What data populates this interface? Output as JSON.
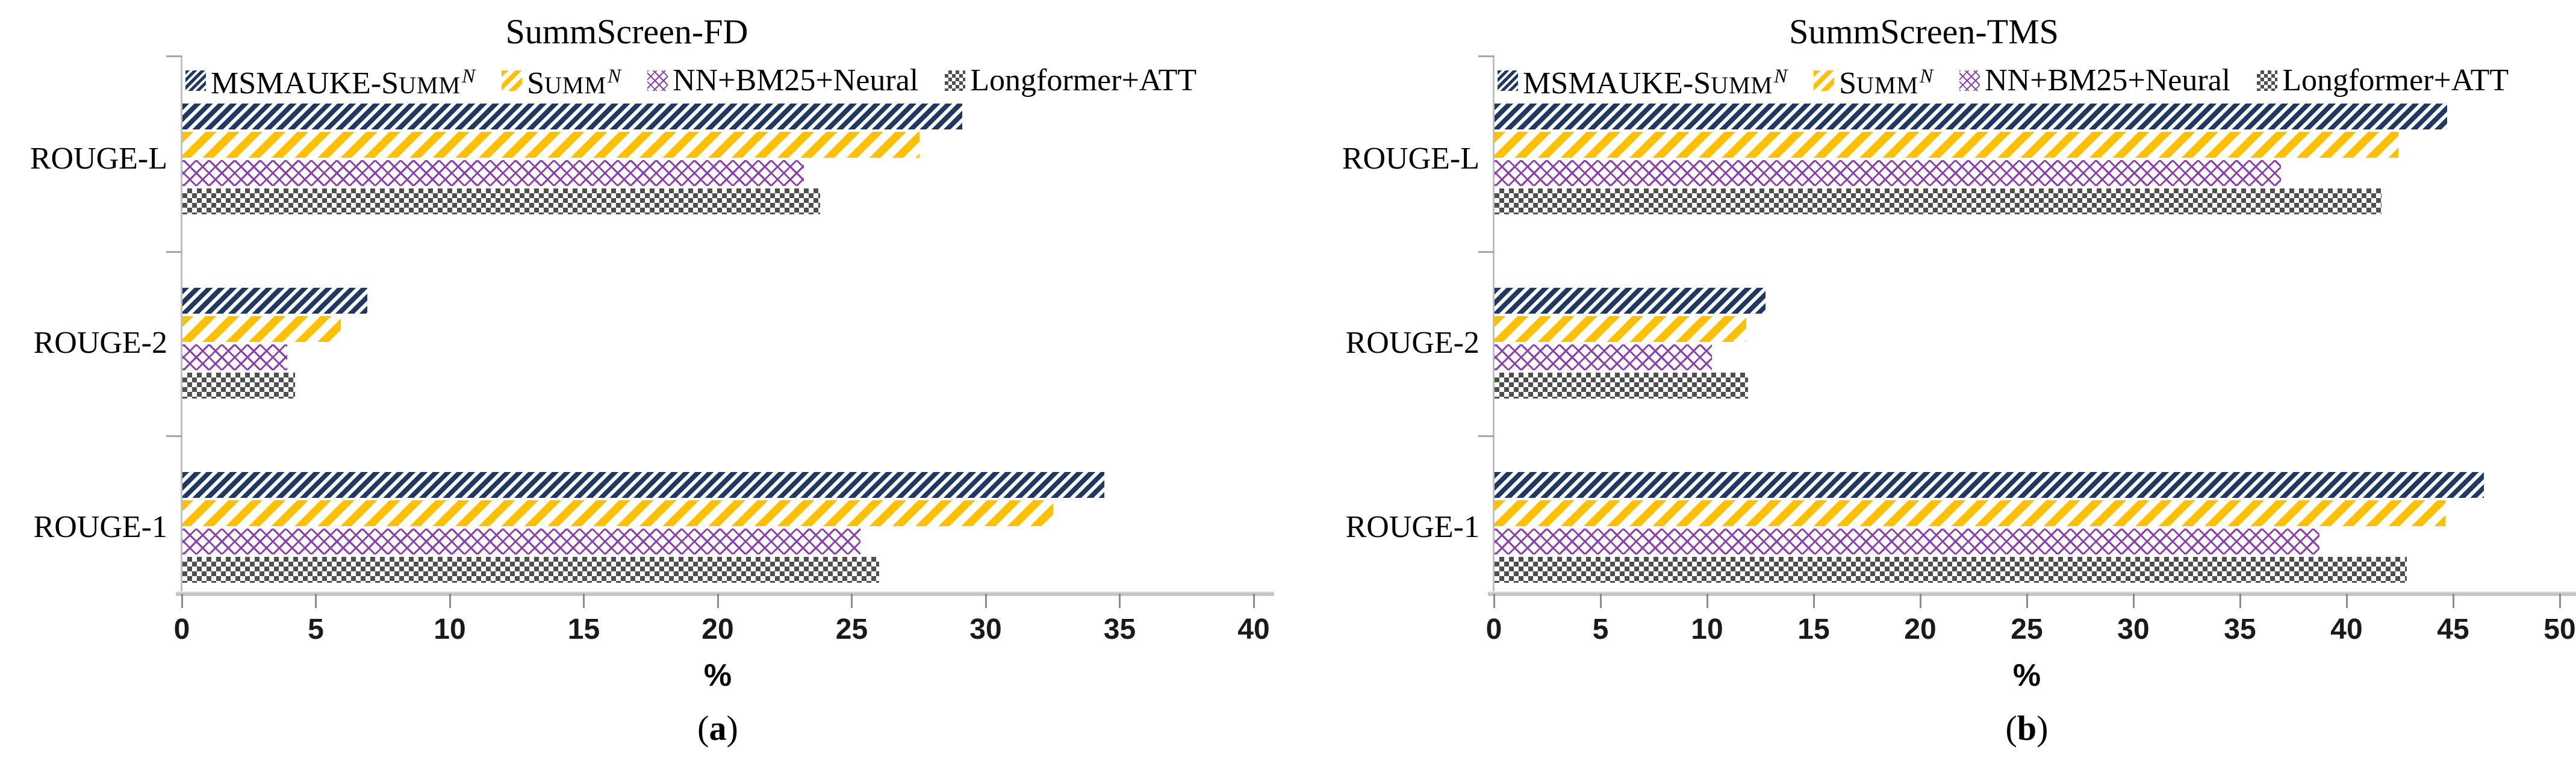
{
  "colors": {
    "navy": "#1f3864",
    "yellow": "#ffc000",
    "purple": "#8b3fae",
    "gray": "#4f4f4f",
    "axis_line": "#bfbfbf",
    "tick_mark": "#8c8c8c",
    "text": "#000000"
  },
  "series_legend": [
    {
      "id": "msmauke-summ",
      "pattern": "navy-diagonal",
      "swatch_icon": "navy-diagonal-stripes-swatch",
      "label_main": "MSMAUKE-S",
      "label_caps": "UMM",
      "label_sup": "N",
      "label_text": "MSMAUKE-Summ^N"
    },
    {
      "id": "summ-n",
      "pattern": "yellow-diagonal",
      "swatch_icon": "yellow-diagonal-stripes-swatch",
      "label_main": "S",
      "label_caps": "UMM",
      "label_sup": "N",
      "label_text": "Summ^N"
    },
    {
      "id": "nn-bm25-neural",
      "pattern": "purple-crosshatch",
      "swatch_icon": "purple-crosshatch-swatch",
      "label_main": "NN+BM25+Neural",
      "label_caps": "",
      "label_sup": "",
      "label_text": "NN+BM25+Neural"
    },
    {
      "id": "longformer-att",
      "pattern": "gray-checker",
      "swatch_icon": "gray-checker-swatch",
      "label_main": "Longformer+ATT",
      "label_caps": "",
      "label_sup": "",
      "label_text": "Longformer+ATT"
    }
  ],
  "chart_data": [
    {
      "type": "bar",
      "orientation": "horizontal",
      "title": "SummScreen-FD",
      "caption_prefix": "(",
      "caption_letter": "a",
      "caption_suffix": ")",
      "xlabel": "%",
      "xlim": [
        0,
        40
      ],
      "xticks": [
        0,
        5,
        10,
        15,
        20,
        25,
        30,
        35,
        40
      ],
      "grid": false,
      "legend_position": "top-inside",
      "categories": [
        "ROUGE-L",
        "ROUGE-2",
        "ROUGE-1"
      ],
      "series": [
        {
          "name": "MSMAUKE-Summ^N",
          "values": [
            29.1,
            6.9,
            34.4
          ]
        },
        {
          "name": "Summ^N",
          "values": [
            27.5,
            5.9,
            32.5
          ]
        },
        {
          "name": "NN+BM25+Neural",
          "values": [
            23.2,
            3.9,
            25.3
          ]
        },
        {
          "name": "Longformer+ATT",
          "values": [
            23.8,
            4.2,
            26.0
          ]
        }
      ]
    },
    {
      "type": "bar",
      "orientation": "horizontal",
      "title": "SummScreen-TMS",
      "caption_prefix": "(",
      "caption_letter": "b",
      "caption_suffix": ")",
      "xlabel": "%",
      "xlim": [
        0,
        50
      ],
      "xticks": [
        0,
        5,
        10,
        15,
        20,
        25,
        30,
        35,
        40,
        45,
        50
      ],
      "grid": false,
      "legend_position": "top-inside",
      "categories": [
        "ROUGE-L",
        "ROUGE-2",
        "ROUGE-1"
      ],
      "series": [
        {
          "name": "MSMAUKE-Summ^N",
          "values": [
            44.7,
            12.7,
            46.4
          ]
        },
        {
          "name": "Summ^N",
          "values": [
            42.4,
            11.8,
            44.6
          ]
        },
        {
          "name": "NN+BM25+Neural",
          "values": [
            36.9,
            10.2,
            38.7
          ]
        },
        {
          "name": "Longformer+ATT",
          "values": [
            41.6,
            11.9,
            42.8
          ]
        }
      ]
    }
  ]
}
